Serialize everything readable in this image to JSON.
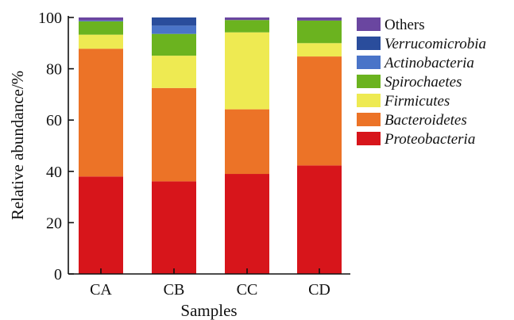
{
  "chart_data": {
    "type": "bar",
    "stacked": true,
    "title": "",
    "xlabel": "Samples",
    "ylabel": "Relative abundance/%",
    "ylim": [
      0,
      100
    ],
    "yticks": [
      "0",
      "20",
      "40",
      "60",
      "80",
      "100"
    ],
    "categories": [
      "CA",
      "CB",
      "CC",
      "CD"
    ],
    "grid": false,
    "legend_position": "right",
    "series": [
      {
        "name": "Proteobacteria",
        "italic": true,
        "color": "#d7151b",
        "values": [
          38.0,
          36.1,
          39.0,
          42.3
        ]
      },
      {
        "name": "Bacteroidetes",
        "italic": true,
        "color": "#ec7327",
        "values": [
          49.8,
          36.4,
          25.2,
          42.5
        ]
      },
      {
        "name": "Firmicutes",
        "italic": true,
        "color": "#eeea52",
        "values": [
          5.5,
          12.6,
          30.0,
          5.2
        ]
      },
      {
        "name": "Spirochaetes",
        "italic": true,
        "color": "#6bb31f",
        "values": [
          5.2,
          8.5,
          4.8,
          8.8
        ]
      },
      {
        "name": "Actinobacteria",
        "italic": true,
        "color": "#4a74c8",
        "values": [
          0.3,
          3.2,
          0.0,
          0.0
        ]
      },
      {
        "name": "Verrucomicrobia",
        "italic": true,
        "color": "#2a4d9c",
        "values": [
          0.0,
          3.2,
          0.0,
          0.0
        ]
      },
      {
        "name": "Others",
        "italic": false,
        "color": "#6a46a0",
        "values": [
          1.2,
          0.0,
          1.0,
          1.2
        ]
      }
    ],
    "legend_order": [
      "Others",
      "Verrucomicrobia",
      "Actinobacteria",
      "Spirochaetes",
      "Firmicutes",
      "Bacteroidetes",
      "Proteobacteria"
    ]
  }
}
